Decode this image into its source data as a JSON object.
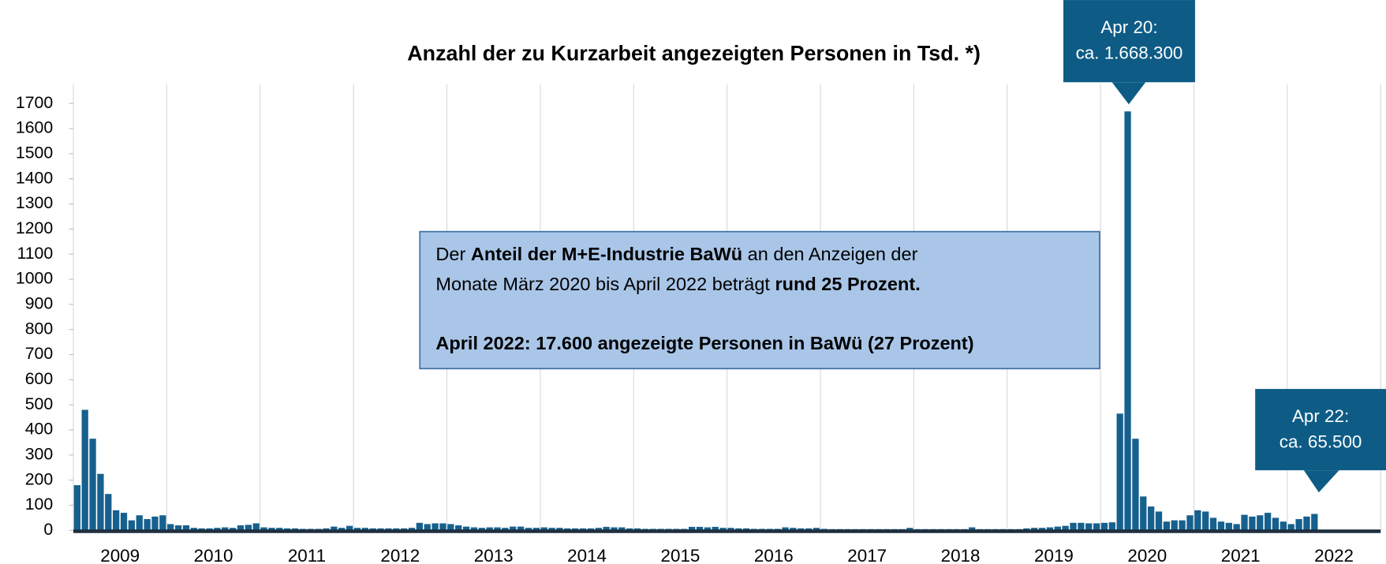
{
  "chart_data": {
    "type": "bar",
    "title": "Anzahl der zu Kurzarbeit angezeigten Personen in Tsd. *)",
    "categories": [
      "2009",
      "2010",
      "2011",
      "2012",
      "2013",
      "2014",
      "2015",
      "2016",
      "2017",
      "2018",
      "2019",
      "2020",
      "2021",
      "2022"
    ],
    "values": [
      [
        180,
        480,
        365,
        225,
        145,
        80,
        70,
        40,
        60,
        45,
        55,
        60
      ],
      [
        25,
        20,
        20,
        10,
        8,
        8,
        10,
        12,
        10,
        20,
        22,
        28
      ],
      [
        12,
        10,
        10,
        8,
        8,
        6,
        6,
        6,
        8,
        15,
        10,
        18
      ],
      [
        10,
        10,
        8,
        8,
        8,
        8,
        8,
        10,
        30,
        25,
        28,
        28
      ],
      [
        25,
        20,
        15,
        12,
        10,
        12,
        12,
        10,
        15,
        15,
        10,
        10
      ],
      [
        12,
        10,
        10,
        8,
        8,
        8,
        8,
        10,
        14,
        12,
        12,
        8
      ],
      [
        8,
        6,
        6,
        6,
        6,
        6,
        6,
        14,
        14,
        12,
        14,
        10
      ],
      [
        10,
        8,
        8,
        6,
        6,
        6,
        6,
        12,
        10,
        8,
        8,
        10
      ],
      [
        6,
        5,
        5,
        5,
        5,
        5,
        5,
        5,
        5,
        5,
        5,
        10
      ],
      [
        5,
        5,
        5,
        5,
        5,
        5,
        5,
        12,
        5,
        5,
        5,
        5
      ],
      [
        5,
        5,
        8,
        10,
        10,
        12,
        15,
        18,
        30,
        30,
        28,
        28
      ],
      [
        30,
        32,
        465,
        1668.3,
        365,
        135,
        95,
        75,
        35,
        40,
        40,
        60
      ],
      [
        80,
        75,
        50,
        35,
        30,
        25,
        62,
        55,
        60,
        70,
        50,
        35
      ],
      [
        25,
        45,
        55,
        65.5,
        null,
        null,
        null,
        null,
        null,
        null,
        null,
        null
      ]
    ],
    "color": "#16608e",
    "ylim": [
      0,
      1700
    ],
    "yticks": [
      0,
      100,
      200,
      300,
      400,
      500,
      600,
      700,
      800,
      900,
      1000,
      1100,
      1200,
      1300,
      1400,
      1500,
      1600,
      1700
    ],
    "grid": "x",
    "annotations": [
      {
        "lines": [
          "Apr 20:",
          "ca. 1.668.300"
        ]
      },
      {
        "lines": [
          "Apr 22:",
          "ca. 65.500"
        ]
      }
    ],
    "note": [
      [
        {
          "text": "Der ",
          "bold": false
        },
        {
          "text": "Anteil der M+E-Industrie BaWü",
          "bold": true
        },
        {
          "text": " an den Anzeigen der",
          "bold": false
        }
      ],
      [
        {
          "text": "Monate März 2020 bis April 2022 beträgt ",
          "bold": false
        },
        {
          "text": "rund 25 Prozent.",
          "bold": true
        }
      ],
      [],
      [
        {
          "text": "April 2022: 17.600 angezeigte Personen in BaWü (27 Prozent)",
          "bold": true
        }
      ]
    ]
  }
}
